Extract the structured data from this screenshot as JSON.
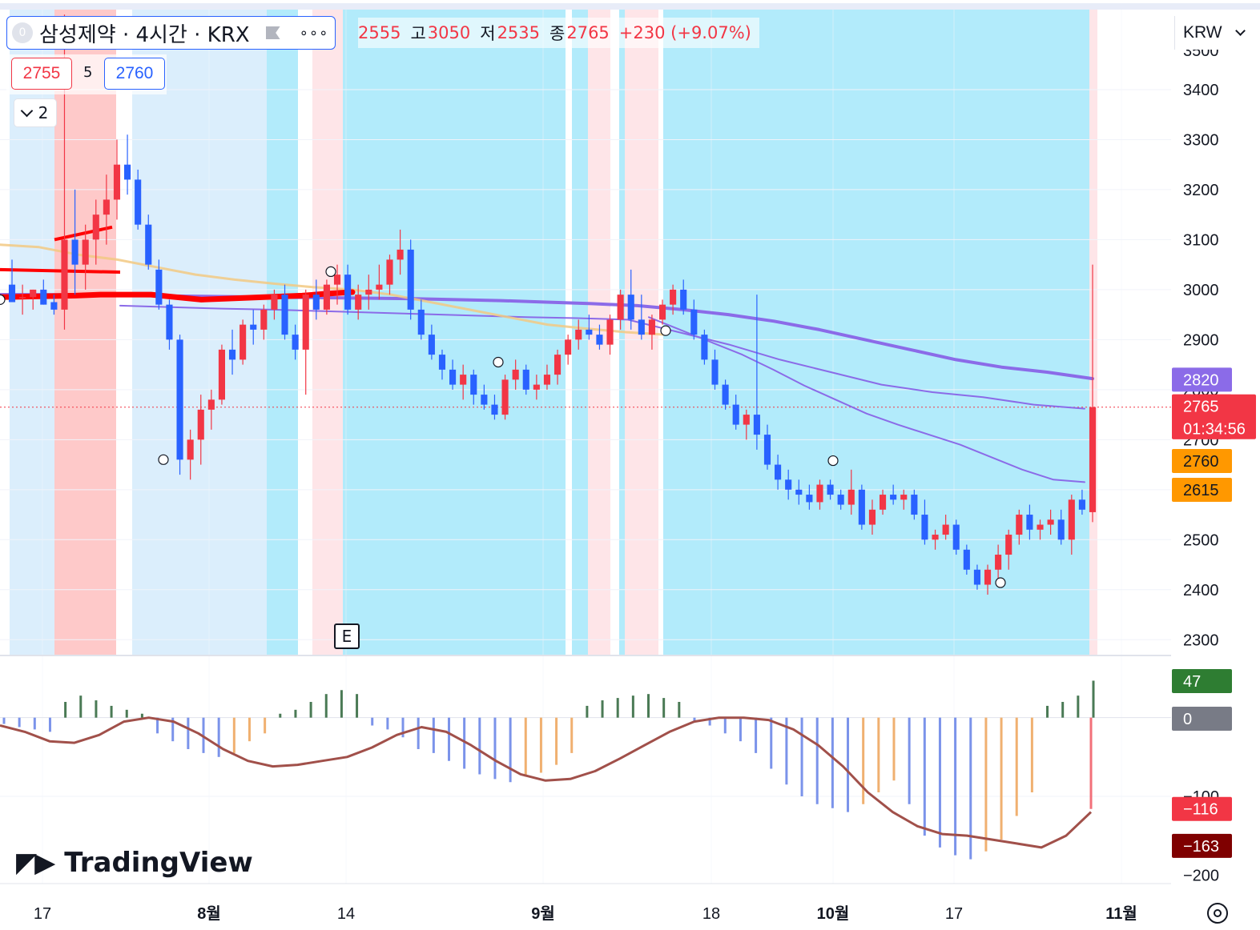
{
  "header": {
    "symbol_badge": "0",
    "title": "삼성제약 · 4시간 · KRX",
    "flag_icon": "flag-icon",
    "more_icon": "more-icon"
  },
  "ohlc": {
    "open_value": "2555",
    "high_key": "고",
    "high_value": "3050",
    "low_key": "저",
    "low_value": "2535",
    "close_key": "종",
    "close_value": "2765",
    "change": "+230 (+9.07%)"
  },
  "order_panel": {
    "sell": "2755",
    "spread": "5",
    "buy": "2760"
  },
  "indicators_toggle": {
    "count": "2"
  },
  "currency": "KRW",
  "earnings_marker": "E",
  "branding": "TradingView",
  "colors": {
    "up": "#f23645",
    "down": "#2962ff",
    "bg_blue": "#b2ebfb",
    "bg_lightblue": "#dbeefc",
    "bg_red": "#fec9c9",
    "bg_pink": "#fee5e8",
    "ma_purple": "#8b6be8",
    "ma_orange": "#f2c983",
    "ma_red": "#ff0000",
    "macd_line": "#a1504a",
    "hist_green": "#4a7a55",
    "hist_blue": "#7b93ea",
    "hist_orange": "#f0b070",
    "hist_red": "#f2707a"
  },
  "chart_data": [
    {
      "type": "candlestick",
      "title": "삼성제약 · 4시간 · KRX",
      "ylim": [
        2270,
        3560
      ],
      "y_ticks": [
        3400,
        3300,
        3200,
        3100,
        3000,
        2900,
        2800,
        2700,
        2600,
        2500,
        2400,
        2300
      ],
      "x_ticks": [
        "17",
        "8월",
        "14",
        "9월",
        "18",
        "10월",
        "17",
        "11월"
      ],
      "grid": true,
      "background_zones": [
        "lightblue",
        "blue",
        "lightblue",
        "red",
        "lightblue",
        "blue",
        "pink",
        "blue",
        "pink",
        "blue",
        "pink",
        "blue",
        "pink"
      ],
      "candles": [
        [
          3010,
          3060,
          2985,
          2975
        ],
        [
          2985,
          3010,
          2950,
          2985
        ],
        [
          2985,
          3000,
          2960,
          3000
        ],
        [
          3000,
          3020,
          2970,
          2970
        ],
        [
          2975,
          2990,
          2950,
          2960
        ],
        [
          2960,
          3550,
          2920,
          3100
        ],
        [
          3100,
          3200,
          2990,
          3050
        ],
        [
          3050,
          3130,
          3000,
          3100
        ],
        [
          3100,
          3180,
          3050,
          3150
        ],
        [
          3150,
          3230,
          3090,
          3180
        ],
        [
          3180,
          3300,
          3140,
          3250
        ],
        [
          3250,
          3310,
          3190,
          3220
        ],
        [
          3220,
          3240,
          3120,
          3130
        ],
        [
          3130,
          3150,
          3040,
          3050
        ],
        [
          3040,
          3060,
          2960,
          2970
        ],
        [
          2970,
          2980,
          2880,
          2900
        ],
        [
          2900,
          2910,
          2630,
          2660
        ],
        [
          2660,
          2720,
          2620,
          2700
        ],
        [
          2700,
          2790,
          2650,
          2760
        ],
        [
          2760,
          2800,
          2720,
          2780
        ],
        [
          2780,
          2890,
          2770,
          2880
        ],
        [
          2880,
          2920,
          2830,
          2860
        ],
        [
          2860,
          2940,
          2850,
          2930
        ],
        [
          2930,
          2960,
          2890,
          2920
        ],
        [
          2920,
          2970,
          2900,
          2960
        ],
        [
          2960,
          3000,
          2940,
          2990
        ],
        [
          2990,
          3010,
          2900,
          2910
        ],
        [
          2910,
          2930,
          2860,
          2880
        ],
        [
          2880,
          3000,
          2790,
          2990
        ],
        [
          2990,
          3020,
          2940,
          2960
        ],
        [
          2960,
          3020,
          2950,
          3010
        ],
        [
          3010,
          3050,
          2970,
          3030
        ],
        [
          3030,
          3050,
          2950,
          2960
        ],
        [
          2960,
          3010,
          2940,
          2990
        ],
        [
          2990,
          3030,
          2960,
          3000
        ],
        [
          3000,
          3050,
          2980,
          3010
        ],
        [
          3010,
          3070,
          2990,
          3060
        ],
        [
          3060,
          3120,
          3030,
          3080
        ],
        [
          3080,
          3100,
          2940,
          2960
        ],
        [
          2960,
          2980,
          2900,
          2910
        ],
        [
          2910,
          2930,
          2860,
          2870
        ],
        [
          2870,
          2880,
          2820,
          2840
        ],
        [
          2840,
          2860,
          2800,
          2810
        ],
        [
          2810,
          2850,
          2780,
          2830
        ],
        [
          2830,
          2840,
          2770,
          2790
        ],
        [
          2790,
          2810,
          2760,
          2770
        ],
        [
          2770,
          2790,
          2740,
          2750
        ],
        [
          2750,
          2830,
          2740,
          2820
        ],
        [
          2820,
          2860,
          2800,
          2840
        ],
        [
          2840,
          2850,
          2790,
          2800
        ],
        [
          2800,
          2830,
          2780,
          2810
        ],
        [
          2810,
          2850,
          2800,
          2830
        ],
        [
          2830,
          2880,
          2810,
          2870
        ],
        [
          2870,
          2910,
          2850,
          2900
        ],
        [
          2900,
          2940,
          2880,
          2920
        ],
        [
          2920,
          2950,
          2900,
          2910
        ],
        [
          2910,
          2930,
          2880,
          2890
        ],
        [
          2890,
          2950,
          2870,
          2940
        ],
        [
          2940,
          3000,
          2920,
          2990
        ],
        [
          2990,
          3040,
          2920,
          2940
        ],
        [
          2940,
          2990,
          2900,
          2910
        ],
        [
          2910,
          2950,
          2880,
          2940
        ],
        [
          2940,
          2980,
          2930,
          2970
        ],
        [
          2970,
          3010,
          2950,
          3000
        ],
        [
          3000,
          3020,
          2950,
          2960
        ],
        [
          2960,
          2980,
          2900,
          2910
        ],
        [
          2910,
          2920,
          2850,
          2860
        ],
        [
          2860,
          2880,
          2800,
          2810
        ],
        [
          2810,
          2820,
          2760,
          2770
        ],
        [
          2770,
          2790,
          2720,
          2730
        ],
        [
          2730,
          2760,
          2700,
          2750
        ],
        [
          2750,
          2990,
          2680,
          2710
        ],
        [
          2710,
          2730,
          2640,
          2650
        ],
        [
          2650,
          2670,
          2600,
          2620
        ],
        [
          2620,
          2640,
          2580,
          2600
        ],
        [
          2600,
          2620,
          2570,
          2590
        ],
        [
          2590,
          2610,
          2560,
          2575
        ],
        [
          2575,
          2620,
          2560,
          2610
        ],
        [
          2610,
          2620,
          2580,
          2590
        ],
        [
          2590,
          2600,
          2560,
          2570
        ],
        [
          2570,
          2640,
          2550,
          2600
        ],
        [
          2600,
          2610,
          2520,
          2530
        ],
        [
          2530,
          2580,
          2510,
          2560
        ],
        [
          2560,
          2600,
          2550,
          2590
        ],
        [
          2590,
          2610,
          2570,
          2580
        ],
        [
          2580,
          2600,
          2560,
          2590
        ],
        [
          2590,
          2600,
          2540,
          2550
        ],
        [
          2550,
          2580,
          2490,
          2500
        ],
        [
          2500,
          2520,
          2480,
          2510
        ],
        [
          2510,
          2550,
          2500,
          2530
        ],
        [
          2530,
          2540,
          2470,
          2480
        ],
        [
          2480,
          2490,
          2430,
          2440
        ],
        [
          2440,
          2450,
          2400,
          2410
        ],
        [
          2410,
          2450,
          2390,
          2440
        ],
        [
          2440,
          2490,
          2420,
          2470
        ],
        [
          2470,
          2520,
          2440,
          2510
        ],
        [
          2510,
          2560,
          2490,
          2550
        ],
        [
          2550,
          2570,
          2500,
          2520
        ],
        [
          2520,
          2540,
          2500,
          2530
        ],
        [
          2530,
          2560,
          2510,
          2540
        ],
        [
          2540,
          2560,
          2490,
          2500
        ],
        [
          2500,
          2590,
          2470,
          2580
        ],
        [
          2580,
          2600,
          2550,
          2560
        ],
        [
          2555,
          3050,
          2535,
          2765
        ]
      ],
      "ma_lines": [
        {
          "color": "#8b6be8",
          "width": 4,
          "values": [
            2990,
            2990,
            2989,
            2988,
            2987,
            2986,
            2985,
            2984,
            2983,
            2982,
            2980,
            2978,
            2975,
            2972,
            2968,
            2960,
            2950,
            2937,
            2920,
            2900,
            2880,
            2860,
            2845,
            2835,
            2822
          ]
        },
        {
          "color": "#8b6be8",
          "width": 2,
          "values": [
            2968,
            2965,
            2962,
            2960,
            2957,
            2954,
            2951,
            2948,
            2945,
            2943,
            2940,
            2915,
            2890,
            2860,
            2835,
            2810,
            2795,
            2785,
            2770,
            2762
          ]
        },
        {
          "color": "#8b6be8",
          "width": 2,
          "values": [
            2945,
            2920,
            2895,
            2870,
            2840,
            2808,
            2780,
            2752,
            2730,
            2710,
            2690,
            2665,
            2640,
            2620,
            2615
          ]
        },
        {
          "color": "#f2c983",
          "width": 3,
          "values": [
            3090,
            3085,
            3070,
            3060,
            3045,
            3030,
            3020,
            3012,
            3005,
            3000,
            2990,
            2975,
            2960,
            2945,
            2930,
            2922,
            2915,
            2910
          ]
        },
        {
          "color": "#ff0000",
          "width": 7,
          "values": [
            2985,
            2986,
            2987,
            2988,
            2990,
            2990,
            2990,
            2985,
            2980,
            2982,
            2984,
            2986,
            2988,
            2992,
            2995
          ]
        }
      ],
      "price_labels": [
        {
          "value": "2820",
          "price": 2820,
          "color": "#8b6be8"
        },
        {
          "value": "2765",
          "price": 2765,
          "color": "#f23645",
          "sub": "01:34:56"
        },
        {
          "value": "2760",
          "price": 2700,
          "color": "#ff9800",
          "text_color": "#131722"
        },
        {
          "value": "2615",
          "price": 2615,
          "color": "#ff9800",
          "text_color": "#131722"
        }
      ]
    },
    {
      "type": "bar",
      "title": "MACD",
      "ylim": [
        -215,
        78
      ],
      "y_ticks": [
        -100,
        -200
      ],
      "macd_line": [
        -10,
        -18,
        -30,
        -32,
        -22,
        -5,
        0,
        -5,
        -20,
        -40,
        -55,
        -62,
        -60,
        -55,
        -50,
        -38,
        -22,
        -12,
        -18,
        -35,
        -55,
        -72,
        -80,
        -78,
        -68,
        -52,
        -35,
        -18,
        -5,
        0,
        0,
        -3,
        -15,
        -35,
        -62,
        -95,
        -120,
        -138,
        -148,
        -150,
        -155,
        -160,
        -165,
        -150,
        -120
      ],
      "histogram": [
        -8,
        -12,
        -15,
        -18,
        20,
        28,
        22,
        15,
        10,
        5,
        -20,
        -30,
        -40,
        -45,
        -50,
        -45,
        -30,
        -20,
        5,
        10,
        20,
        30,
        35,
        30,
        -10,
        -15,
        -25,
        -40,
        -45,
        -55,
        -65,
        -72,
        -78,
        -82,
        -75,
        -70,
        -60,
        -45,
        15,
        22,
        25,
        28,
        30,
        25,
        20,
        -5,
        -10,
        -20,
        -30,
        -45,
        -65,
        -85,
        -100,
        -110,
        -115,
        -120,
        -110,
        -95,
        -80,
        -110,
        -150,
        -165,
        -175,
        -180,
        -170,
        -155,
        -125,
        -95,
        15,
        20,
        28,
        47
      ],
      "price_labels": [
        {
          "value": "47",
          "price": 47,
          "color": "#2e7d32"
        },
        {
          "value": "0",
          "price": 0,
          "color": "#787b86"
        },
        {
          "value": "−116",
          "price": -116,
          "color": "#f23645"
        },
        {
          "value": "−163",
          "price": -163,
          "color": "#7f0000"
        }
      ]
    }
  ]
}
